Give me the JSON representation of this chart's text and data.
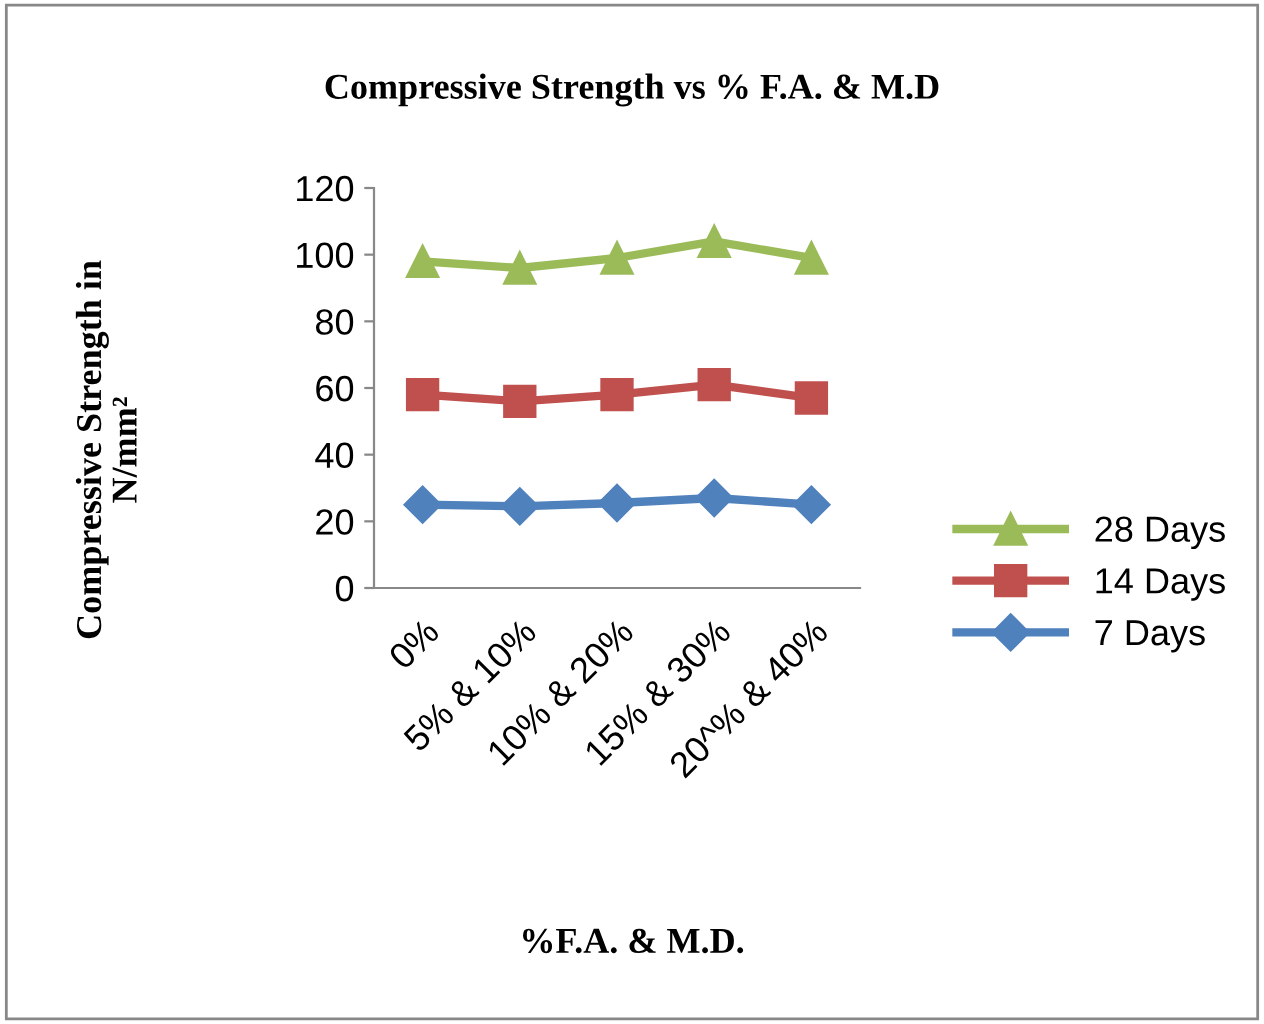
{
  "chart_data": {
    "type": "line",
    "title": "Compressive Strength vs % F.A. & M.D",
    "xlabel": "%F.A. & M.D.",
    "ylabel": "Compressive Strength in\nN/mm²",
    "categories": [
      "0%",
      "5% & 10%",
      "10% & 20%",
      "15% & 30%",
      "20^% & 40%"
    ],
    "series": [
      {
        "name": "28 Days",
        "color": "#9bbb59",
        "marker": "triangle",
        "values": [
          98,
          96,
          99,
          104,
          99
        ]
      },
      {
        "name": "14 Days",
        "color": "#c0504d",
        "marker": "square",
        "values": [
          58,
          56,
          58,
          61,
          57
        ]
      },
      {
        "name": "7 Days",
        "color": "#4f81bd",
        "marker": "diamond",
        "values": [
          25,
          24.5,
          25.5,
          27,
          25
        ]
      }
    ],
    "ylim": [
      0,
      120
    ],
    "yticks": [
      0,
      20,
      40,
      60,
      80,
      100,
      120
    ],
    "grid": false,
    "legend": "right",
    "line_style": "solid"
  }
}
